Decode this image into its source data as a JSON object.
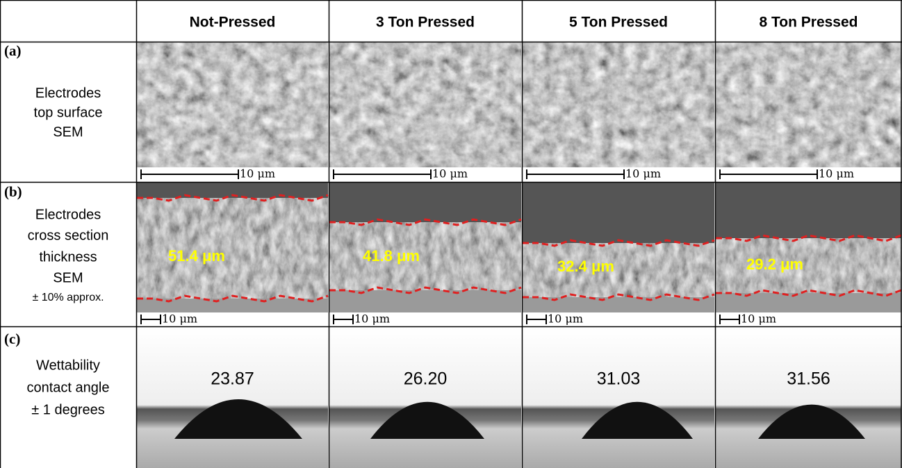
{
  "header": {
    "columns": [
      "Not-Pressed",
      "3 Ton Pressed",
      "5 Ton Pressed",
      "8 Ton Pressed"
    ]
  },
  "rows": [
    {
      "label": "(a)",
      "description": [
        "Electrodes",
        "top surface",
        "SEM"
      ],
      "scale_bars": [
        "10 μm",
        "10 μm",
        "10 μm",
        "10 μm"
      ]
    },
    {
      "label": "(b)",
      "description": [
        "Electrodes",
        "cross section",
        "thickness",
        "SEM",
        "± 10% approx."
      ],
      "scale_bars": [
        "10 μm",
        "10 μm",
        "10 μm",
        "10 μm"
      ],
      "thicknesses": [
        "51.4 μm",
        "41.8 μm",
        "32.4 μm",
        "29.2 μm"
      ]
    },
    {
      "label": "(c)",
      "description": [
        "Wettability",
        "contact angle",
        "± 1 degrees"
      ],
      "contact_angles": [
        "23.87",
        "26.20",
        "31.03",
        "31.56"
      ]
    }
  ]
}
